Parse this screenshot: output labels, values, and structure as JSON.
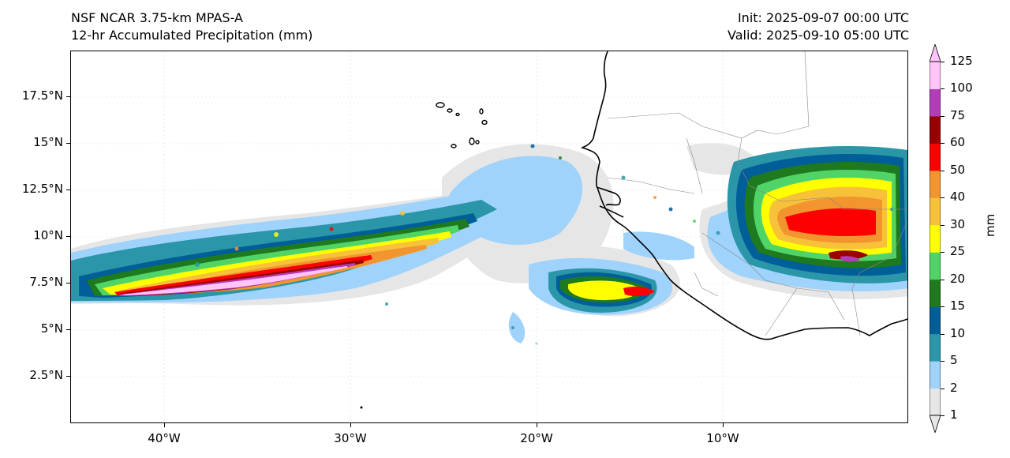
{
  "header": {
    "model": "NSF NCAR 3.75-km MPAS-A",
    "field": "12-hr Accumulated Precipitation (mm)",
    "init": "Init: 2025-09-07 00:00 UTC",
    "valid": "Valid: 2025-09-10 05:00 UTC"
  },
  "axes": {
    "lat_ticks": [
      "17.5°N",
      "15°N",
      "12.5°N",
      "10°N",
      "7.5°N",
      "5°N",
      "2.5°N"
    ],
    "lon_ticks": [
      "40°W",
      "30°W",
      "20°W",
      "10°W"
    ]
  },
  "colorbar": {
    "unit": "mm",
    "levels": [
      "1",
      "2",
      "5",
      "10",
      "15",
      "20",
      "25",
      "30",
      "40",
      "50",
      "60",
      "75",
      "100",
      "125"
    ],
    "colors": [
      "#e6e6e6",
      "#9fd3fb",
      "#2a96a8",
      "#005e99",
      "#1f7a1f",
      "#50d468",
      "#ffff00",
      "#f7c23a",
      "#f2952f",
      "#ff0000",
      "#990000",
      "#b33cb8",
      "#ffc4f8"
    ]
  },
  "map": {
    "extent_lon": [
      -45,
      0
    ],
    "extent_lat": [
      0,
      20
    ],
    "features": [
      "coastline-west-africa",
      "country-borders",
      "cape-verde-islands",
      "precipitation-field"
    ]
  }
}
